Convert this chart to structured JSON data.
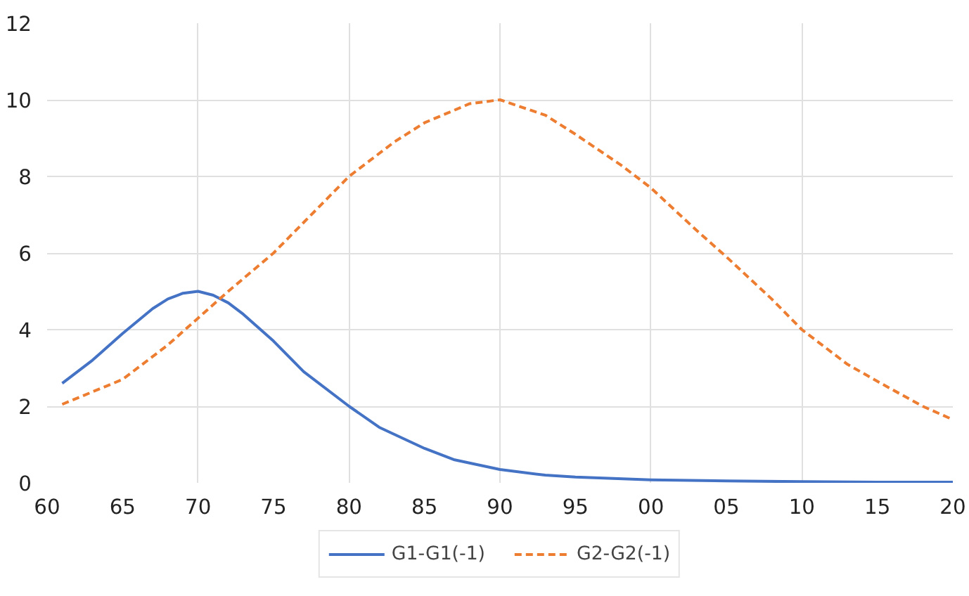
{
  "chart_data": {
    "type": "line",
    "xlim": [
      1960,
      2020
    ],
    "ylim": [
      0,
      12
    ],
    "xticks": [
      {
        "value": 1960,
        "label": "60"
      },
      {
        "value": 1965,
        "label": "65"
      },
      {
        "value": 1970,
        "label": "70"
      },
      {
        "value": 1975,
        "label": "75"
      },
      {
        "value": 1980,
        "label": "80"
      },
      {
        "value": 1985,
        "label": "85"
      },
      {
        "value": 1990,
        "label": "90"
      },
      {
        "value": 1995,
        "label": "95"
      },
      {
        "value": 2000,
        "label": "00"
      },
      {
        "value": 2005,
        "label": "05"
      },
      {
        "value": 2010,
        "label": "10"
      },
      {
        "value": 2015,
        "label": "15"
      },
      {
        "value": 2020,
        "label": "20"
      }
    ],
    "yticks": [
      0,
      2,
      4,
      6,
      8,
      10,
      12
    ],
    "grid": true,
    "legend": "bottom",
    "marker": "none",
    "x": [
      1961,
      1963,
      1965,
      1967,
      1968,
      1969,
      1970,
      1971,
      1972,
      1973,
      1975,
      1977,
      1980,
      1982,
      1985,
      1987,
      1990,
      1993,
      1995,
      2000,
      2005,
      2010,
      2015,
      2020
    ],
    "series": [
      {
        "name": "G1-G1(-1)",
        "color": "#4472c4",
        "line_style": "solid",
        "values": [
          2.6,
          3.2,
          3.9,
          4.55,
          4.8,
          4.95,
          5.0,
          4.9,
          4.7,
          4.4,
          3.7,
          2.9,
          2.0,
          1.45,
          0.9,
          0.6,
          0.35,
          0.2,
          0.15,
          0.08,
          0.05,
          0.03,
          0.02,
          0.02
        ]
      },
      {
        "name": "G2-G2(-1)",
        "color": "#ed7d31",
        "line_style": "dashed",
        "x": [
          1961,
          1965,
          1968,
          1970,
          1972,
          1975,
          1978,
          1980,
          1983,
          1985,
          1988,
          1990,
          1993,
          1995,
          1998,
          2000,
          2003,
          2005,
          2008,
          2010,
          2013,
          2015,
          2018,
          2020
        ],
        "values": [
          2.05,
          2.7,
          3.6,
          4.3,
          5.0,
          6.0,
          7.2,
          8.0,
          8.9,
          9.4,
          9.9,
          10.0,
          9.6,
          9.1,
          8.3,
          7.7,
          6.6,
          5.9,
          4.8,
          4.0,
          3.1,
          2.65,
          2.0,
          1.65
        ]
      }
    ]
  }
}
